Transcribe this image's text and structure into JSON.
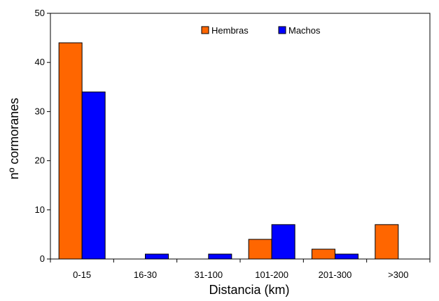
{
  "chart_data": {
    "type": "bar",
    "categories": [
      "0-15",
      "16-30",
      "31-100",
      "101-200",
      "201-300",
      ">300"
    ],
    "series": [
      {
        "name": "Hembras",
        "color": "#FF6600",
        "values": [
          44,
          0,
          0,
          4,
          2,
          7
        ]
      },
      {
        "name": "Machos",
        "color": "#0000FF",
        "values": [
          34,
          1,
          1,
          7,
          1,
          0
        ]
      }
    ],
    "xlabel": "Distancia (km)",
    "ylabel": "nº cormoranes",
    "ylim": [
      0,
      50
    ],
    "yticks": [
      0,
      10,
      20,
      30,
      40,
      50
    ],
    "grid": false,
    "legend_position": "top-center"
  }
}
